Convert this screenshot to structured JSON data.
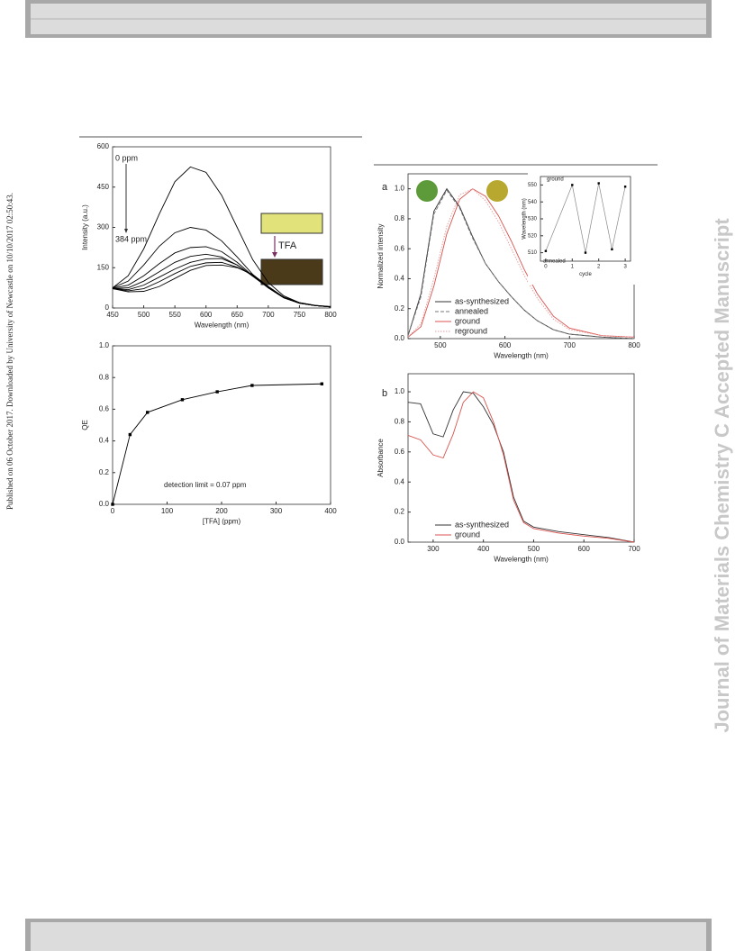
{
  "page": {
    "left_notice": "Published on 06 October 2017. Downloaded by University of Newcastle on 10/10/2017 02:50:43.",
    "journal_watermark": "Journal of Materials Chemistry C Accepted Manuscript"
  },
  "chart_data": [
    {
      "type": "line",
      "xlabel": "Wavelength (nm)",
      "ylabel": "Intensity (a.u.)",
      "x": [
        450,
        475,
        500,
        525,
        550,
        575,
        600,
        625,
        650,
        675,
        700,
        725,
        750,
        775,
        800
      ],
      "series": [
        {
          "color": "#000000",
          "values": [
            75,
            120,
            220,
            350,
            470,
            525,
            505,
            420,
            300,
            180,
            95,
            45,
            20,
            10,
            5
          ]
        },
        {
          "color": "#000000",
          "values": [
            75,
            100,
            160,
            230,
            280,
            300,
            290,
            250,
            190,
            125,
            75,
            38,
            18,
            9,
            4
          ]
        },
        {
          "color": "#000000",
          "values": [
            74,
            85,
            120,
            165,
            205,
            225,
            228,
            210,
            170,
            120,
            75,
            38,
            18,
            9,
            4
          ]
        },
        {
          "color": "#000000",
          "values": [
            73,
            75,
            100,
            135,
            170,
            192,
            200,
            190,
            160,
            118,
            75,
            38,
            18,
            9,
            4
          ]
        },
        {
          "color": "#000000",
          "values": [
            73,
            68,
            85,
            115,
            145,
            170,
            183,
            184,
            160,
            120,
            78,
            40,
            19,
            9,
            4
          ]
        },
        {
          "color": "#000000",
          "values": [
            72,
            64,
            72,
            98,
            128,
            155,
            168,
            170,
            152,
            122,
            80,
            40,
            19,
            9,
            4
          ]
        },
        {
          "color": "#000000",
          "values": [
            72,
            60,
            62,
            80,
            110,
            140,
            158,
            160,
            150,
            125,
            80,
            40,
            20,
            10,
            5
          ]
        }
      ],
      "xlim": [
        450,
        800
      ],
      "xticks": [
        450,
        500,
        550,
        600,
        650,
        700,
        750,
        800
      ],
      "ylim": [
        0,
        600
      ],
      "yticks": [
        0,
        150,
        300,
        450,
        600
      ],
      "annotations": [
        "0 ppm",
        "384 ppm",
        "TFA"
      ]
    },
    {
      "type": "line",
      "xlabel": "[TFA] (ppm)",
      "ylabel": "QE",
      "x": [
        0,
        32,
        64,
        128,
        192,
        256,
        384
      ],
      "series": [
        {
          "color": "#000000",
          "marker": "square",
          "values": [
            0,
            0.44,
            0.58,
            0.66,
            0.71,
            0.75,
            0.76
          ]
        }
      ],
      "xlim": [
        0,
        400
      ],
      "xticks": [
        0,
        100,
        200,
        300,
        400
      ],
      "ylim": [
        0,
        1
      ],
      "yticks": [
        {
          "value": 0,
          "label": "0.0"
        },
        0.2,
        0.4,
        0.6,
        0.8,
        {
          "value": 1,
          "label": "1.0"
        }
      ],
      "annotations": [
        "detection limit  = 0.07 ppm"
      ]
    },
    {
      "type": "line",
      "panel_label": "a",
      "xlabel": "Wavelength (nm)",
      "ylabel": "Normalized intensity",
      "x": [
        450,
        470,
        490,
        510,
        530,
        550,
        570,
        590,
        610,
        630,
        650,
        675,
        700,
        750,
        800
      ],
      "series": [
        {
          "name": "as-synthesized",
          "color": "#333333",
          "values": [
            0.02,
            0.3,
            0.85,
            1.0,
            0.88,
            0.68,
            0.5,
            0.38,
            0.28,
            0.19,
            0.12,
            0.06,
            0.03,
            0.01,
            0
          ]
        },
        {
          "name": "annealed",
          "color": "#777777",
          "dash": "dashed",
          "values": [
            0.02,
            0.28,
            0.83,
            0.99,
            0.87,
            0.67,
            0.5,
            0.38,
            0.28,
            0.19,
            0.12,
            0.06,
            0.03,
            0.01,
            0
          ]
        },
        {
          "name": "ground",
          "color": "#d9534f",
          "values": [
            0.01,
            0.08,
            0.35,
            0.7,
            0.93,
            1.0,
            0.95,
            0.82,
            0.65,
            0.46,
            0.3,
            0.15,
            0.07,
            0.02,
            0.01
          ]
        },
        {
          "name": "reground",
          "color": "#e89a9a",
          "dash": "dotted",
          "values": [
            0.01,
            0.1,
            0.4,
            0.75,
            0.96,
            1.0,
            0.92,
            0.78,
            0.6,
            0.42,
            0.27,
            0.13,
            0.06,
            0.02,
            0.01
          ]
        }
      ],
      "xlim": [
        450,
        800
      ],
      "xticks": [
        500,
        600,
        700,
        800
      ],
      "ylim": [
        0,
        1.1
      ],
      "yticks": [
        {
          "value": 0,
          "label": "0.0"
        },
        0.2,
        0.4,
        0.6,
        0.8,
        {
          "value": 1,
          "label": "1.0"
        }
      ],
      "legend": "lower left"
    },
    {
      "type": "line",
      "xlabel": "cycle",
      "ylabel": "Wavelength (nm)",
      "x": [
        0,
        1,
        1.5,
        2,
        2.5,
        3
      ],
      "series": [
        {
          "color": "#888888",
          "marker": "square",
          "values": [
            511,
            550,
            510,
            551,
            512,
            549
          ]
        }
      ],
      "xlim": [
        -0.2,
        3.2
      ],
      "xticks": [
        0,
        1,
        2,
        3
      ],
      "ylim": [
        505,
        555
      ],
      "yticks": [
        510,
        520,
        530,
        540,
        550
      ],
      "annotations": [
        "ground",
        "annealed"
      ]
    },
    {
      "type": "line",
      "panel_label": "b",
      "xlabel": "Wavelength (nm)",
      "ylabel": "Absorbance",
      "x": [
        250,
        275,
        300,
        320,
        340,
        360,
        380,
        400,
        420,
        440,
        460,
        480,
        500,
        550,
        600,
        650,
        700
      ],
      "series": [
        {
          "name": "as-synthesized",
          "color": "#333333",
          "values": [
            0.93,
            0.92,
            0.72,
            0.7,
            0.88,
            1.0,
            0.99,
            0.9,
            0.78,
            0.6,
            0.3,
            0.14,
            0.1,
            0.07,
            0.05,
            0.03,
            0.0
          ]
        },
        {
          "name": "ground",
          "color": "#d9534f",
          "values": [
            0.71,
            0.68,
            0.58,
            0.56,
            0.72,
            0.93,
            1.0,
            0.96,
            0.8,
            0.58,
            0.28,
            0.13,
            0.09,
            0.06,
            0.04,
            0.025,
            0.0
          ]
        }
      ],
      "xlim": [
        250,
        700
      ],
      "xticks": [
        300,
        400,
        500,
        600,
        700
      ],
      "ylim": [
        0,
        1.12
      ],
      "yticks": [
        {
          "value": 0,
          "label": "0.0"
        },
        0.2,
        0.4,
        0.6,
        0.8,
        {
          "value": 1,
          "label": "1.0"
        }
      ],
      "legend": "lower left"
    }
  ]
}
